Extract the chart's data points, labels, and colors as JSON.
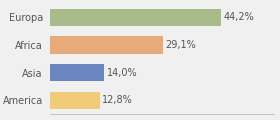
{
  "categories": [
    "Europa",
    "Africa",
    "Asia",
    "America"
  ],
  "values": [
    44.2,
    29.1,
    14.0,
    12.8
  ],
  "bar_colors": [
    "#a8bb8a",
    "#e8aa78",
    "#6b85c0",
    "#f0cb7a"
  ],
  "labels": [
    "44,2%",
    "29,1%",
    "14,0%",
    "12,8%"
  ],
  "xlim": [
    0,
    58
  ],
  "background_color": "#f0f0f0",
  "bar_height": 0.62,
  "label_fontsize": 7.0,
  "tick_fontsize": 7.0
}
